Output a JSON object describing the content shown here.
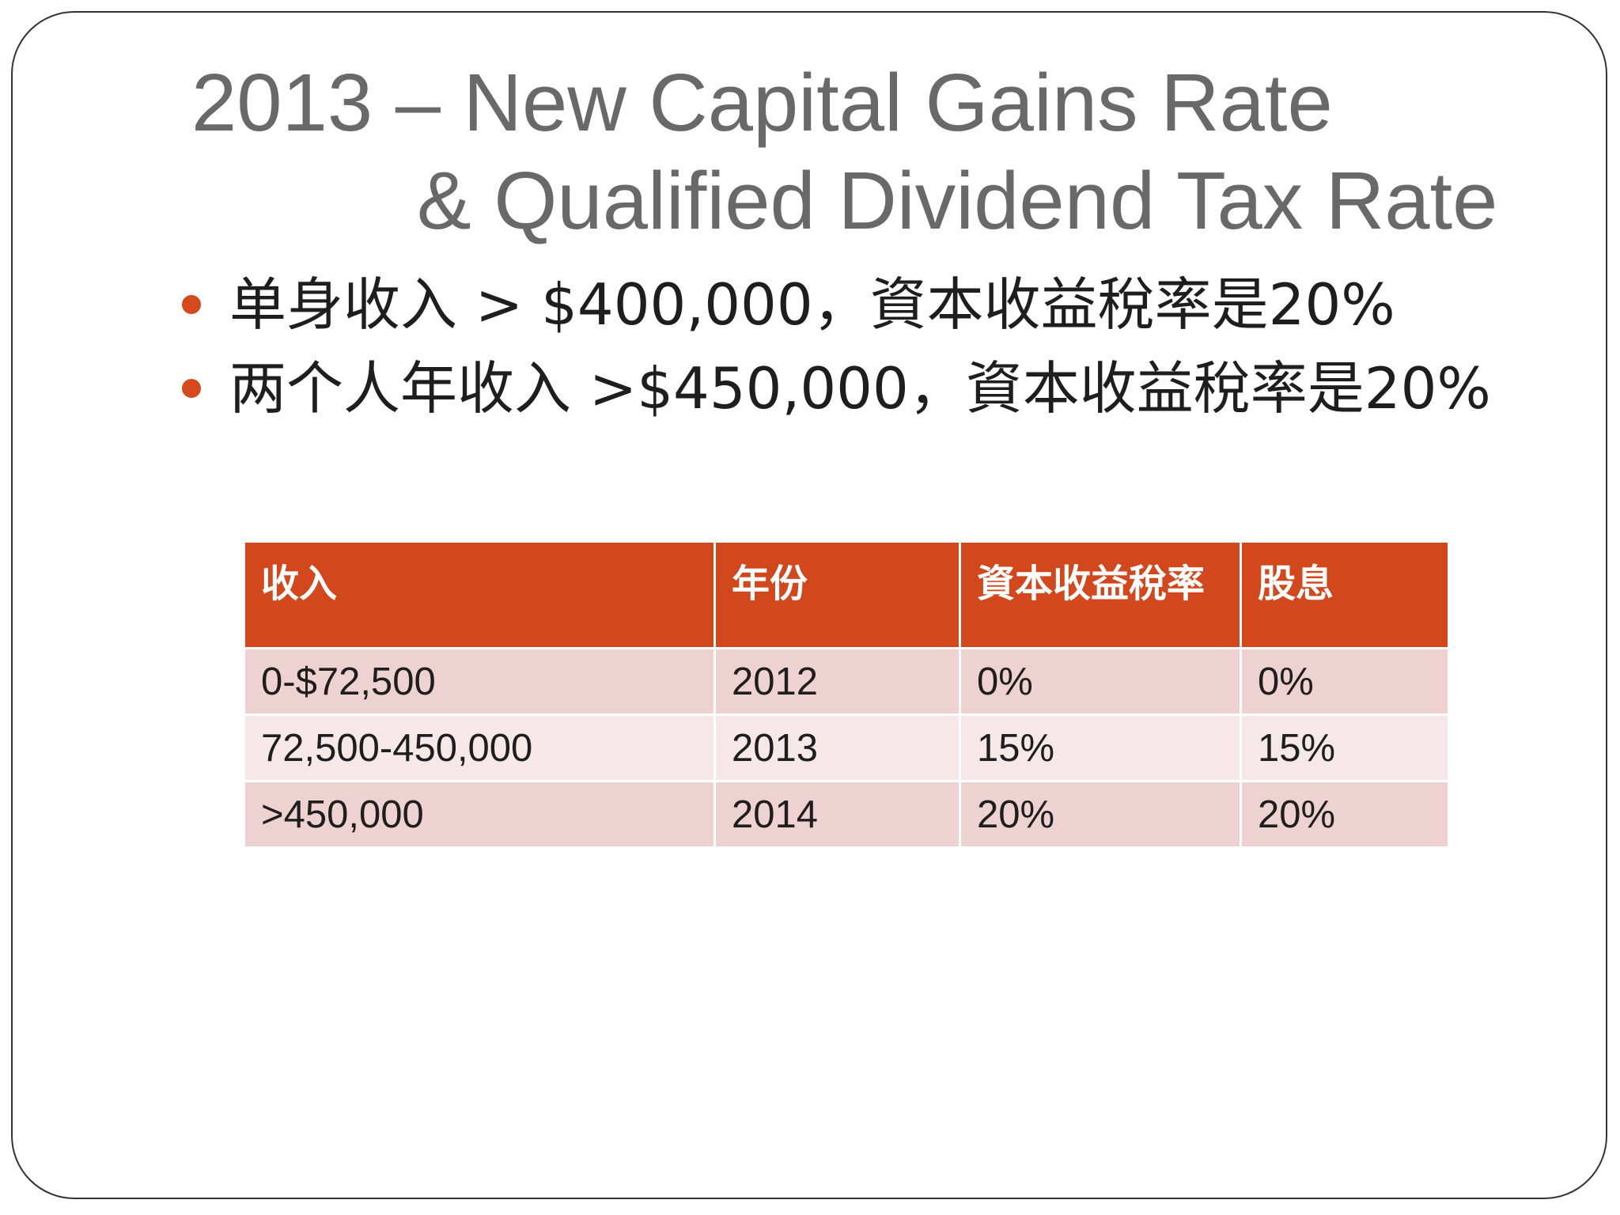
{
  "slide": {
    "title_line1": "2013 – New Capital Gains Rate",
    "title_line2": "& Qualified Dividend Tax Rate",
    "bullets": [
      "单身收入 > $400,000，資本收益稅率是20%",
      "两个人年收入 >$450,000，資本收益稅率是20%"
    ],
    "accent_color": "#d5491d",
    "table": {
      "headers": [
        "收入",
        "年份",
        "資本收益稅率",
        "股息"
      ],
      "rows": [
        [
          "0-$72,500",
          "2012",
          "0%",
          "0%"
        ],
        [
          "72,500-450,000",
          "2013",
          "15%",
          "15%"
        ],
        [
          ">450,000",
          "2014",
          "20%",
          "20%"
        ]
      ]
    }
  }
}
